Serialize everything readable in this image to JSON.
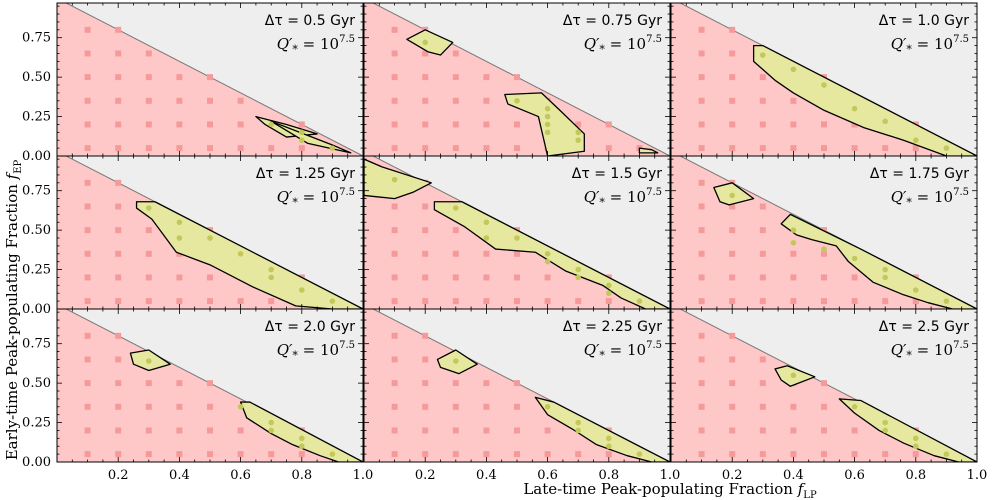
{
  "chart_data": {
    "type": "scatter",
    "layout": "3x3 grid",
    "xlabel": "Late-time Peak-populating Fraction f_LP",
    "xlabel_main": "Late-time Peak-populating Fraction ",
    "xlabel_symbol": "f",
    "xlabel_sub": "LP",
    "ylabel": "Early-time Peak-populating Fraction f_EP",
    "ylabel_main": "Early-time Peak-populating Fraction ",
    "ylabel_symbol": "f",
    "ylabel_sub": "EP",
    "xlim": [
      0,
      1
    ],
    "ylim": [
      0,
      1
    ],
    "x_ticks": [
      0.0,
      0.2,
      0.4,
      0.6,
      0.8,
      1.0
    ],
    "x_tick_labels": [
      "",
      "0.2",
      "0.4",
      "0.6",
      "0.8",
      "1.0"
    ],
    "x_tick_labels_last_col": [
      "",
      "0.2",
      "0.4",
      "0.6",
      "0.8",
      "1.0"
    ],
    "y_ticks": [
      0.0,
      0.25,
      0.5,
      0.75
    ],
    "y_tick_labels": [
      "0.00",
      "0.25",
      "0.50",
      "0.75"
    ],
    "colors": {
      "excluded": "#ffc8c8",
      "allowed": "#e6e8a0",
      "unphysical": "#eeeeee",
      "square_marker": "#f59a9a",
      "circle_marker": "#c2c85a",
      "outline": "#000000",
      "diagonal": "#777777"
    },
    "panels": [
      {
        "dt_label": "Δτ = 0.5 Gyr",
        "q_label": "Q′",
        "q_star": "*",
        "q_eq": " = 10",
        "q_exp": "7.5",
        "allowed_regions": [
          [
            [
              0.65,
              0.25
            ],
            [
              0.75,
              0.2
            ],
            [
              0.85,
              0.14
            ],
            [
              0.75,
              0.12
            ],
            [
              0.68,
              0.2
            ]
          ],
          [
            [
              0.7,
              0.22
            ],
            [
              0.9,
              0.07
            ],
            [
              0.96,
              0.02
            ],
            [
              0.82,
              0.08
            ]
          ]
        ],
        "allowed_points": [
          [
            0.7,
            0.2
          ],
          [
            0.8,
            0.1
          ],
          [
            0.8,
            0.15
          ],
          [
            0.9,
            0.05
          ]
        ]
      },
      {
        "dt_label": "Δτ = 0.75 Gyr",
        "q_label": "Q′",
        "q_star": "*",
        "q_eq": " = 10",
        "q_exp": "7.5",
        "allowed_regions": [
          [
            [
              0.14,
              0.74
            ],
            [
              0.2,
              0.8
            ],
            [
              0.29,
              0.72
            ],
            [
              0.25,
              0.64
            ],
            [
              0.21,
              0.66
            ]
          ],
          [
            [
              0.46,
              0.39
            ],
            [
              0.58,
              0.4
            ],
            [
              0.64,
              0.29
            ],
            [
              0.72,
              0.14
            ],
            [
              0.72,
              0.03
            ],
            [
              0.6,
              0.0
            ],
            [
              0.57,
              0.25
            ],
            [
              0.47,
              0.33
            ]
          ],
          [
            [
              0.9,
              0.05
            ],
            [
              0.94,
              0.04
            ],
            [
              0.96,
              0.02
            ],
            [
              0.9,
              0.02
            ]
          ]
        ],
        "allowed_points": [
          [
            0.2,
            0.72
          ],
          [
            0.5,
            0.35
          ],
          [
            0.6,
            0.2
          ],
          [
            0.6,
            0.25
          ],
          [
            0.6,
            0.3
          ],
          [
            0.6,
            0.15
          ],
          [
            0.7,
            0.1
          ],
          [
            0.7,
            0.15
          ]
        ]
      },
      {
        "dt_label": "Δτ = 1.0 Gyr",
        "q_label": "Q′",
        "q_star": "*",
        "q_eq": " = 10",
        "q_exp": "7.5",
        "allowed_regions": [
          [
            [
              0.27,
              0.7
            ],
            [
              0.3,
              0.7
            ],
            [
              1.0,
              0.0
            ],
            [
              0.9,
              0.0
            ],
            [
              0.76,
              0.1
            ],
            [
              0.63,
              0.18
            ],
            [
              0.5,
              0.29
            ],
            [
              0.4,
              0.4
            ],
            [
              0.34,
              0.48
            ],
            [
              0.27,
              0.6
            ]
          ]
        ],
        "allowed_points": [
          [
            0.3,
            0.64
          ],
          [
            0.4,
            0.55
          ],
          [
            0.5,
            0.45
          ],
          [
            0.6,
            0.3
          ],
          [
            0.7,
            0.22
          ],
          [
            0.8,
            0.1
          ],
          [
            0.9,
            0.05
          ]
        ]
      },
      {
        "dt_label": "Δτ = 1.25 Gyr",
        "q_label": "Q′",
        "q_star": "*",
        "q_eq": " = 10",
        "q_exp": "7.5",
        "allowed_regions": [
          [
            [
              0.26,
              0.68
            ],
            [
              0.32,
              0.68
            ],
            [
              1.0,
              0.0
            ],
            [
              0.9,
              0.0
            ],
            [
              0.78,
              0.02
            ],
            [
              0.64,
              0.14
            ],
            [
              0.5,
              0.28
            ],
            [
              0.39,
              0.36
            ],
            [
              0.31,
              0.57
            ],
            [
              0.26,
              0.64
            ]
          ]
        ],
        "allowed_points": [
          [
            0.3,
            0.64
          ],
          [
            0.4,
            0.55
          ],
          [
            0.4,
            0.45
          ],
          [
            0.5,
            0.45
          ],
          [
            0.6,
            0.35
          ],
          [
            0.7,
            0.25
          ],
          [
            0.7,
            0.2
          ],
          [
            0.8,
            0.12
          ],
          [
            0.9,
            0.05
          ]
        ]
      },
      {
        "dt_label": "Δτ = 1.5 Gyr",
        "q_label": "Q′",
        "q_star": "*",
        "q_eq": " = 10",
        "q_exp": "7.5",
        "allowed_regions": [
          [
            [
              0.0,
              0.95
            ],
            [
              0.06,
              0.9
            ],
            [
              0.22,
              0.8
            ],
            [
              0.16,
              0.74
            ],
            [
              0.1,
              0.7
            ],
            [
              0.0,
              0.72
            ]
          ],
          [
            [
              0.23,
              0.68
            ],
            [
              0.32,
              0.68
            ],
            [
              1.0,
              0.0
            ],
            [
              0.92,
              0.0
            ],
            [
              0.84,
              0.07
            ],
            [
              0.78,
              0.15
            ],
            [
              0.66,
              0.24
            ],
            [
              0.56,
              0.36
            ],
            [
              0.43,
              0.38
            ],
            [
              0.33,
              0.52
            ],
            [
              0.23,
              0.63
            ]
          ]
        ],
        "allowed_points": [
          [
            0.1,
            0.82
          ],
          [
            0.3,
            0.64
          ],
          [
            0.4,
            0.55
          ],
          [
            0.4,
            0.45
          ],
          [
            0.5,
            0.45
          ],
          [
            0.6,
            0.35
          ],
          [
            0.6,
            0.3
          ],
          [
            0.7,
            0.25
          ],
          [
            0.7,
            0.2
          ],
          [
            0.8,
            0.15
          ],
          [
            0.8,
            0.1
          ],
          [
            0.9,
            0.05
          ]
        ]
      },
      {
        "dt_label": "Δτ = 1.75 Gyr",
        "q_label": "Q′",
        "q_star": "*",
        "q_eq": " = 10",
        "q_exp": "7.5",
        "allowed_regions": [
          [
            [
              0.14,
              0.77
            ],
            [
              0.2,
              0.8
            ],
            [
              0.27,
              0.7
            ],
            [
              0.19,
              0.66
            ],
            [
              0.16,
              0.68
            ]
          ],
          [
            [
              0.39,
              0.6
            ],
            [
              0.62,
              0.38
            ],
            [
              1.0,
              0.0
            ],
            [
              0.92,
              0.0
            ],
            [
              0.84,
              0.04
            ],
            [
              0.76,
              0.09
            ],
            [
              0.66,
              0.17
            ],
            [
              0.58,
              0.3
            ],
            [
              0.54,
              0.4
            ],
            [
              0.46,
              0.44
            ],
            [
              0.41,
              0.47
            ],
            [
              0.36,
              0.54
            ]
          ]
        ],
        "allowed_points": [
          [
            0.2,
            0.72
          ],
          [
            0.4,
            0.5
          ],
          [
            0.4,
            0.42
          ],
          [
            0.5,
            0.38
          ],
          [
            0.6,
            0.32
          ],
          [
            0.7,
            0.25
          ],
          [
            0.7,
            0.2
          ],
          [
            0.8,
            0.12
          ],
          [
            0.9,
            0.05
          ]
        ]
      },
      {
        "dt_label": "Δτ = 2.0 Gyr",
        "q_label": "Q′",
        "q_star": "*",
        "q_eq": " = 10",
        "q_exp": "7.5",
        "allowed_regions": [
          [
            [
              0.24,
              0.69
            ],
            [
              0.3,
              0.71
            ],
            [
              0.37,
              0.62
            ],
            [
              0.3,
              0.58
            ],
            [
              0.25,
              0.62
            ]
          ],
          [
            [
              0.6,
              0.38
            ],
            [
              0.63,
              0.38
            ],
            [
              1.0,
              0.0
            ],
            [
              0.92,
              0.0
            ],
            [
              0.86,
              0.04
            ],
            [
              0.77,
              0.11
            ],
            [
              0.7,
              0.18
            ],
            [
              0.62,
              0.28
            ]
          ]
        ],
        "allowed_points": [
          [
            0.3,
            0.64
          ],
          [
            0.6,
            0.35
          ],
          [
            0.7,
            0.25
          ],
          [
            0.7,
            0.2
          ],
          [
            0.8,
            0.15
          ],
          [
            0.8,
            0.1
          ],
          [
            0.9,
            0.05
          ]
        ]
      },
      {
        "dt_label": "Δτ = 2.25 Gyr",
        "q_label": "Q′",
        "q_star": "*",
        "q_eq": " = 10",
        "q_exp": "7.5",
        "allowed_regions": [
          [
            [
              0.24,
              0.65
            ],
            [
              0.3,
              0.71
            ],
            [
              0.37,
              0.62
            ],
            [
              0.31,
              0.56
            ],
            [
              0.25,
              0.6
            ]
          ],
          [
            [
              0.56,
              0.41
            ],
            [
              0.62,
              0.38
            ],
            [
              1.0,
              0.0
            ],
            [
              0.94,
              0.0
            ],
            [
              0.86,
              0.04
            ],
            [
              0.76,
              0.11
            ],
            [
              0.68,
              0.21
            ],
            [
              0.6,
              0.3
            ]
          ]
        ],
        "allowed_points": [
          [
            0.3,
            0.64
          ],
          [
            0.6,
            0.35
          ],
          [
            0.7,
            0.25
          ],
          [
            0.7,
            0.2
          ],
          [
            0.8,
            0.15
          ],
          [
            0.8,
            0.1
          ],
          [
            0.9,
            0.05
          ]
        ]
      },
      {
        "dt_label": "Δτ = 2.5 Gyr",
        "q_label": "Q′",
        "q_star": "*",
        "q_eq": " = 10",
        "q_exp": "7.5",
        "allowed_regions": [
          [
            [
              0.34,
              0.59
            ],
            [
              0.38,
              0.61
            ],
            [
              0.47,
              0.54
            ],
            [
              0.39,
              0.48
            ],
            [
              0.36,
              0.52
            ]
          ],
          [
            [
              0.55,
              0.4
            ],
            [
              0.62,
              0.39
            ],
            [
              1.0,
              0.0
            ],
            [
              0.94,
              0.0
            ],
            [
              0.86,
              0.04
            ],
            [
              0.76,
              0.12
            ],
            [
              0.68,
              0.2
            ],
            [
              0.6,
              0.31
            ]
          ]
        ],
        "allowed_points": [
          [
            0.4,
            0.55
          ],
          [
            0.6,
            0.35
          ],
          [
            0.7,
            0.25
          ],
          [
            0.7,
            0.2
          ],
          [
            0.8,
            0.15
          ],
          [
            0.8,
            0.1
          ],
          [
            0.9,
            0.05
          ]
        ]
      }
    ],
    "grid_points_x": [
      0.1,
      0.2,
      0.3,
      0.4,
      0.5,
      0.6,
      0.7,
      0.8,
      0.9
    ],
    "grid_points_y_step": 0.05
  }
}
